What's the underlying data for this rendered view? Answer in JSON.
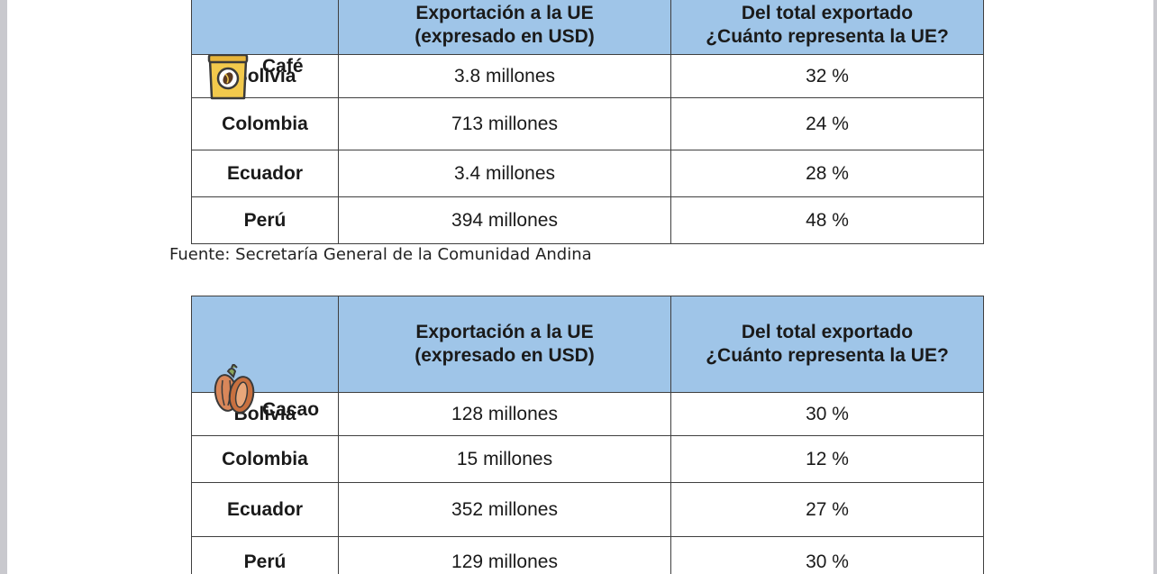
{
  "tables": {
    "cafe": {
      "product": "Café",
      "icon": "coffee-bag-icon",
      "headers": {
        "export": [
          "Exportación a la UE",
          "(expresado en USD)"
        ],
        "share": [
          "Del total exportado",
          "¿Cuánto representa la UE?"
        ]
      },
      "rows": [
        {
          "country": "Bolivia",
          "export": "3.8 millones",
          "share": "32 %"
        },
        {
          "country": "Colombia",
          "export": "713 millones",
          "share": "24 %"
        },
        {
          "country": "Ecuador",
          "export": "3.4 millones",
          "share": "28 %"
        },
        {
          "country": "Perú",
          "export": "394 millones",
          "share": "48 %"
        }
      ]
    },
    "cacao": {
      "product": "Cacao",
      "icon": "cacao-pod-icon",
      "headers": {
        "export": [
          "Exportación a la UE",
          "(expresado en USD)"
        ],
        "share": [
          "Del total exportado",
          "¿Cuánto representa la UE?"
        ]
      },
      "rows": [
        {
          "country": "Bolivia",
          "export": "128 millones",
          "share": "30 %"
        },
        {
          "country": "Colombia",
          "export": "15 millones",
          "share": "12 %"
        },
        {
          "country": "Ecuador",
          "export": "352 millones",
          "share": "27 %"
        },
        {
          "country": "Perú",
          "export": "129 millones",
          "share": "30 %"
        }
      ]
    }
  },
  "source": "Fuente: Secretaría General de la Comunidad Andina",
  "colors": {
    "header_bg": "#9fc5e8",
    "border": "#3f3f3f",
    "coffee_bag": "#f2c94c",
    "cacao_pod": "#d9875a"
  }
}
